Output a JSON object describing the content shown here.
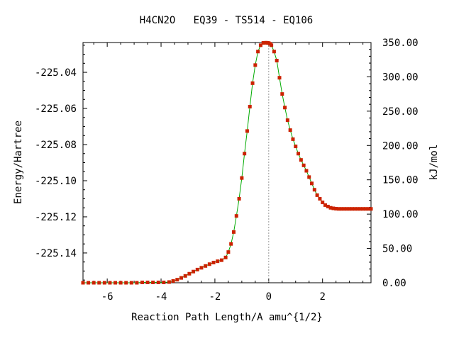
{
  "chart_data": {
    "type": "line",
    "title": "H4CN2O   EQ39 - TS514 - EQ106",
    "xlabel": "Reaction Path Length/A amu^{1/2}",
    "ylabel": "Energy/Hartree",
    "y2label": "kJ/mol",
    "xlim": [
      -6.9,
      3.8
    ],
    "ylim": [
      -225.1565,
      -225.0235
    ],
    "y2lim": [
      0,
      350
    ],
    "x_ticks": [
      "-6",
      "-4",
      "-2",
      "0",
      "2"
    ],
    "x_tick_values": [
      -6,
      -4,
      -2,
      0,
      2
    ],
    "y_ticks": [
      "-225.04",
      "-225.06",
      "-225.08",
      "-225.10",
      "-225.12",
      "-225.14"
    ],
    "y_tick_values": [
      -225.04,
      -225.06,
      -225.08,
      -225.1,
      -225.12,
      -225.14
    ],
    "y2_ticks": [
      "350.00",
      "300.00",
      "250.00",
      "200.00",
      "150.00",
      "100.00",
      "50.00",
      "0.00"
    ],
    "y2_tick_values": [
      350,
      300,
      250,
      200,
      150,
      100,
      50,
      0
    ],
    "ts_marker_x": 0,
    "grid": false,
    "legend": "none",
    "line_color": "#00aa00",
    "marker_color": "#cc2200",
    "series": [
      {
        "x": [
          -6.9,
          -6.7,
          -6.5,
          -6.3,
          -6.1,
          -5.9,
          -5.7,
          -5.5,
          -5.3,
          -5.1,
          -4.9,
          -4.7,
          -4.5,
          -4.3,
          -4.1,
          -3.9,
          -3.7,
          -3.55,
          -3.4,
          -3.25,
          -3.1,
          -2.95,
          -2.8,
          -2.65,
          -2.5,
          -2.35,
          -2.2,
          -2.05,
          -1.9,
          -1.75,
          -1.6,
          -1.5,
          -1.4,
          -1.3,
          -1.2,
          -1.1,
          -1.0,
          -0.9,
          -0.8,
          -0.7,
          -0.6,
          -0.5,
          -0.4,
          -0.3,
          -0.2,
          -0.1,
          -0.05,
          0.0,
          0.05,
          0.1,
          0.2,
          0.3,
          0.4,
          0.5,
          0.6,
          0.7,
          0.8,
          0.9,
          1.0,
          1.1,
          1.2,
          1.3,
          1.4,
          1.5,
          1.6,
          1.7,
          1.8,
          1.9,
          2.0,
          2.1,
          2.2,
          2.3,
          2.4,
          2.5,
          2.6,
          2.7,
          2.8,
          2.9,
          3.0,
          3.1,
          3.2,
          3.3,
          3.4,
          3.5,
          3.6,
          3.7,
          3.8
        ],
        "y": [
          -225.1565,
          -225.1565,
          -225.1565,
          -225.1565,
          -225.1565,
          -225.1565,
          -225.1565,
          -225.1565,
          -225.1565,
          -225.1565,
          -225.1565,
          -225.1563,
          -225.1563,
          -225.1563,
          -225.1563,
          -225.1563,
          -225.1561,
          -225.1555,
          -225.1548,
          -225.1538,
          -225.1527,
          -225.1515,
          -225.1503,
          -225.1492,
          -225.1482,
          -225.1472,
          -225.1462,
          -225.1453,
          -225.1446,
          -225.144,
          -225.1425,
          -225.1395,
          -225.135,
          -225.1284,
          -225.1195,
          -225.11,
          -225.0985,
          -225.085,
          -225.0725,
          -225.059,
          -225.046,
          -225.036,
          -225.0285,
          -225.025,
          -225.0237,
          -225.0236,
          -225.0237,
          -225.0238,
          -225.0242,
          -225.025,
          -225.0285,
          -225.0335,
          -225.043,
          -225.052,
          -225.0595,
          -225.0665,
          -225.072,
          -225.077,
          -225.081,
          -225.085,
          -225.0885,
          -225.0915,
          -225.0945,
          -225.098,
          -225.1015,
          -225.105,
          -225.108,
          -225.11,
          -225.112,
          -225.1135,
          -225.1143,
          -225.115,
          -225.1153,
          -225.1155,
          -225.1156,
          -225.1156,
          -225.1156,
          -225.1156,
          -225.1156,
          -225.1156,
          -225.1156,
          -225.1156,
          -225.1156,
          -225.1156,
          -225.1156,
          -225.1156,
          -225.1156
        ]
      }
    ]
  }
}
